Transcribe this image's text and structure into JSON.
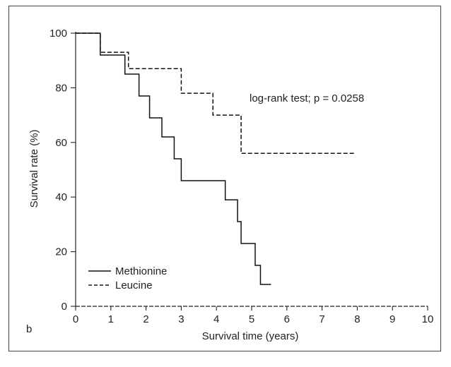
{
  "chart_data": {
    "type": "line",
    "step": true,
    "xlabel": "Survival time (years)",
    "ylabel": "Survival rate (%)",
    "xlim": [
      0,
      10
    ],
    "ylim": [
      0,
      100
    ],
    "xticks": [
      0,
      1,
      2,
      3,
      4,
      5,
      6,
      7,
      8,
      9,
      10
    ],
    "yticks": [
      0,
      20,
      40,
      60,
      80,
      100
    ],
    "grid": false,
    "legend_position": "bottom-left",
    "annotation": "log-rank test; p = 0.0258",
    "panel_label": "b",
    "series": [
      {
        "name": "Methionine",
        "style": "solid",
        "x": [
          0,
          0.7,
          1.4,
          1.8,
          2.1,
          2.45,
          2.8,
          3.0,
          4.25,
          4.6,
          4.7,
          5.1,
          5.25,
          5.55
        ],
        "y": [
          100,
          92,
          85,
          77,
          69,
          62,
          54,
          46,
          39,
          31,
          23,
          15,
          8,
          8
        ]
      },
      {
        "name": "Leucine",
        "style": "dashed",
        "x": [
          0,
          0.6,
          0.7,
          1.45,
          1.5,
          3.0,
          3.9,
          4.7,
          7.95
        ],
        "y": [
          100,
          100,
          93,
          93,
          87,
          78,
          70,
          56,
          56
        ]
      }
    ]
  }
}
